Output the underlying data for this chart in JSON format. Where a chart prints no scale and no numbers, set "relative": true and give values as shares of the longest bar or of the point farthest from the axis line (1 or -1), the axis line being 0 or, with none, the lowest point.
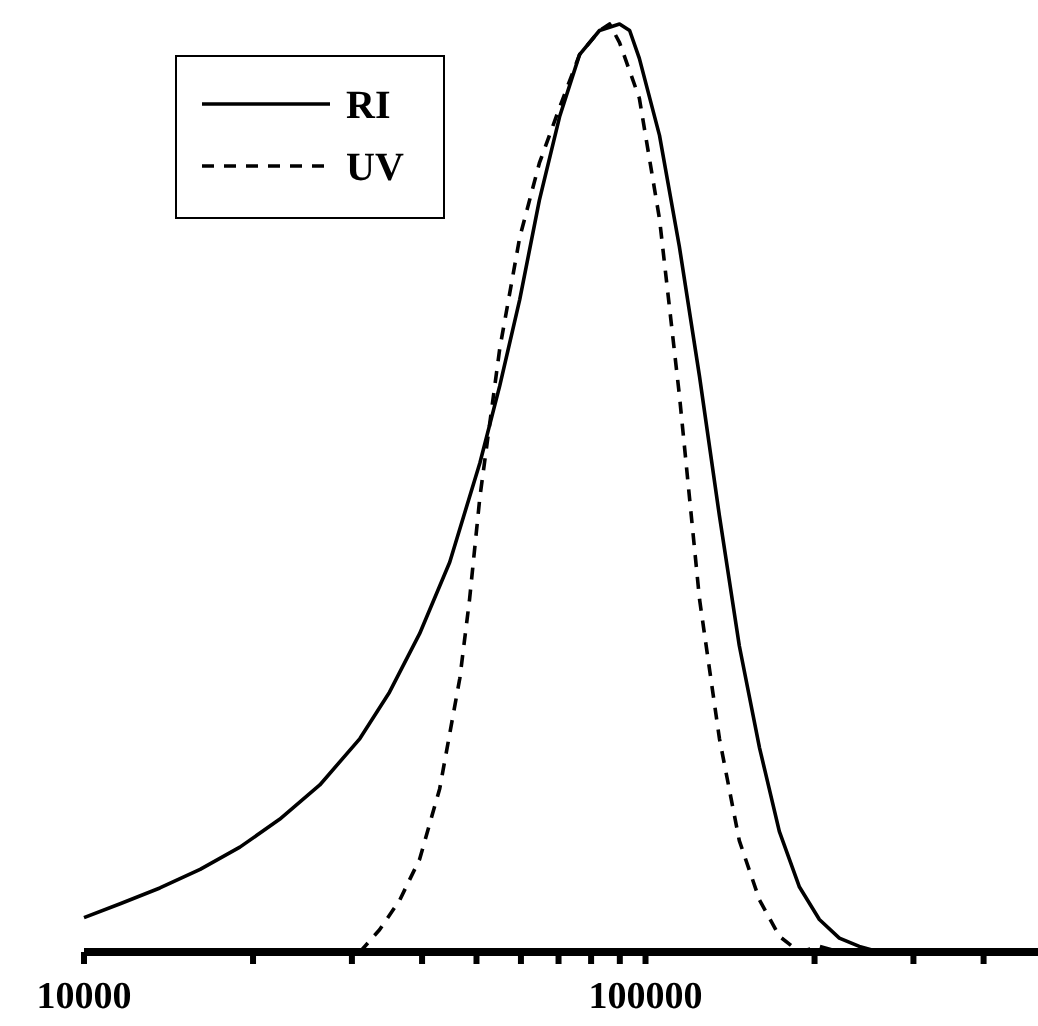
{
  "chart_data": {
    "type": "line",
    "relative": true,
    "log": "x",
    "xlim": [
      10000,
      500000
    ],
    "xticks": [
      10000,
      {
        "value": 20000,
        "label": null
      },
      {
        "value": 30000,
        "label": null
      },
      {
        "value": 40000,
        "label": null
      },
      {
        "value": 50000,
        "label": null
      },
      {
        "value": 60000,
        "label": null
      },
      {
        "value": 70000,
        "label": null
      },
      {
        "value": 80000,
        "label": null
      },
      {
        "value": 90000,
        "label": null
      },
      100000,
      {
        "value": 200000,
        "label": null
      },
      {
        "value": 300000,
        "label": null
      },
      {
        "value": 400000,
        "label": null
      }
    ],
    "legend": "top left",
    "grid": false,
    "series": [
      {
        "name": "RI",
        "color": "#000000",
        "line_style": "solid",
        "x": [
          10000,
          11600,
          13650,
          16100,
          18950,
          22300,
          26300,
          31000,
          35000,
          39600,
          44800,
          50700,
          55000,
          59700,
          64700,
          70300,
          76300,
          82800,
          89900,
          93700,
          97500,
          105900,
          114900,
          124800,
          135400,
          146900,
          159600,
          173100,
          188000,
          204000,
          221400,
          240300,
          260800,
          307300,
          333600
        ],
        "values": [
          0.037,
          0.052,
          0.069,
          0.089,
          0.113,
          0.143,
          0.18,
          0.23,
          0.28,
          0.343,
          0.42,
          0.527,
          0.61,
          0.703,
          0.81,
          0.9,
          0.967,
          0.993,
          1.0,
          0.993,
          0.963,
          0.88,
          0.76,
          0.62,
          0.47,
          0.33,
          0.22,
          0.13,
          0.07,
          0.035,
          0.015,
          0.006,
          0,
          0,
          0.002
        ]
      },
      {
        "name": "UV",
        "color": "#000000",
        "line_style": "dashed",
        "x": [
          31000,
          33600,
          36500,
          39600,
          43000,
          46700,
          48600,
          50700,
          55000,
          59700,
          64700,
          70300,
          76300,
          82800,
          86300,
          89900,
          97500,
          105900,
          114900,
          124800,
          135400,
          146900,
          159600,
          173100,
          188000,
          204000,
          221400
        ],
        "values": [
          0,
          0.024,
          0.056,
          0.1,
          0.176,
          0.295,
          0.38,
          0.49,
          0.65,
          0.77,
          0.85,
          0.91,
          0.967,
          0.993,
          1.0,
          0.98,
          0.92,
          0.79,
          0.6,
          0.38,
          0.23,
          0.12,
          0.056,
          0.017,
          0,
          0.006,
          0
        ]
      }
    ]
  }
}
